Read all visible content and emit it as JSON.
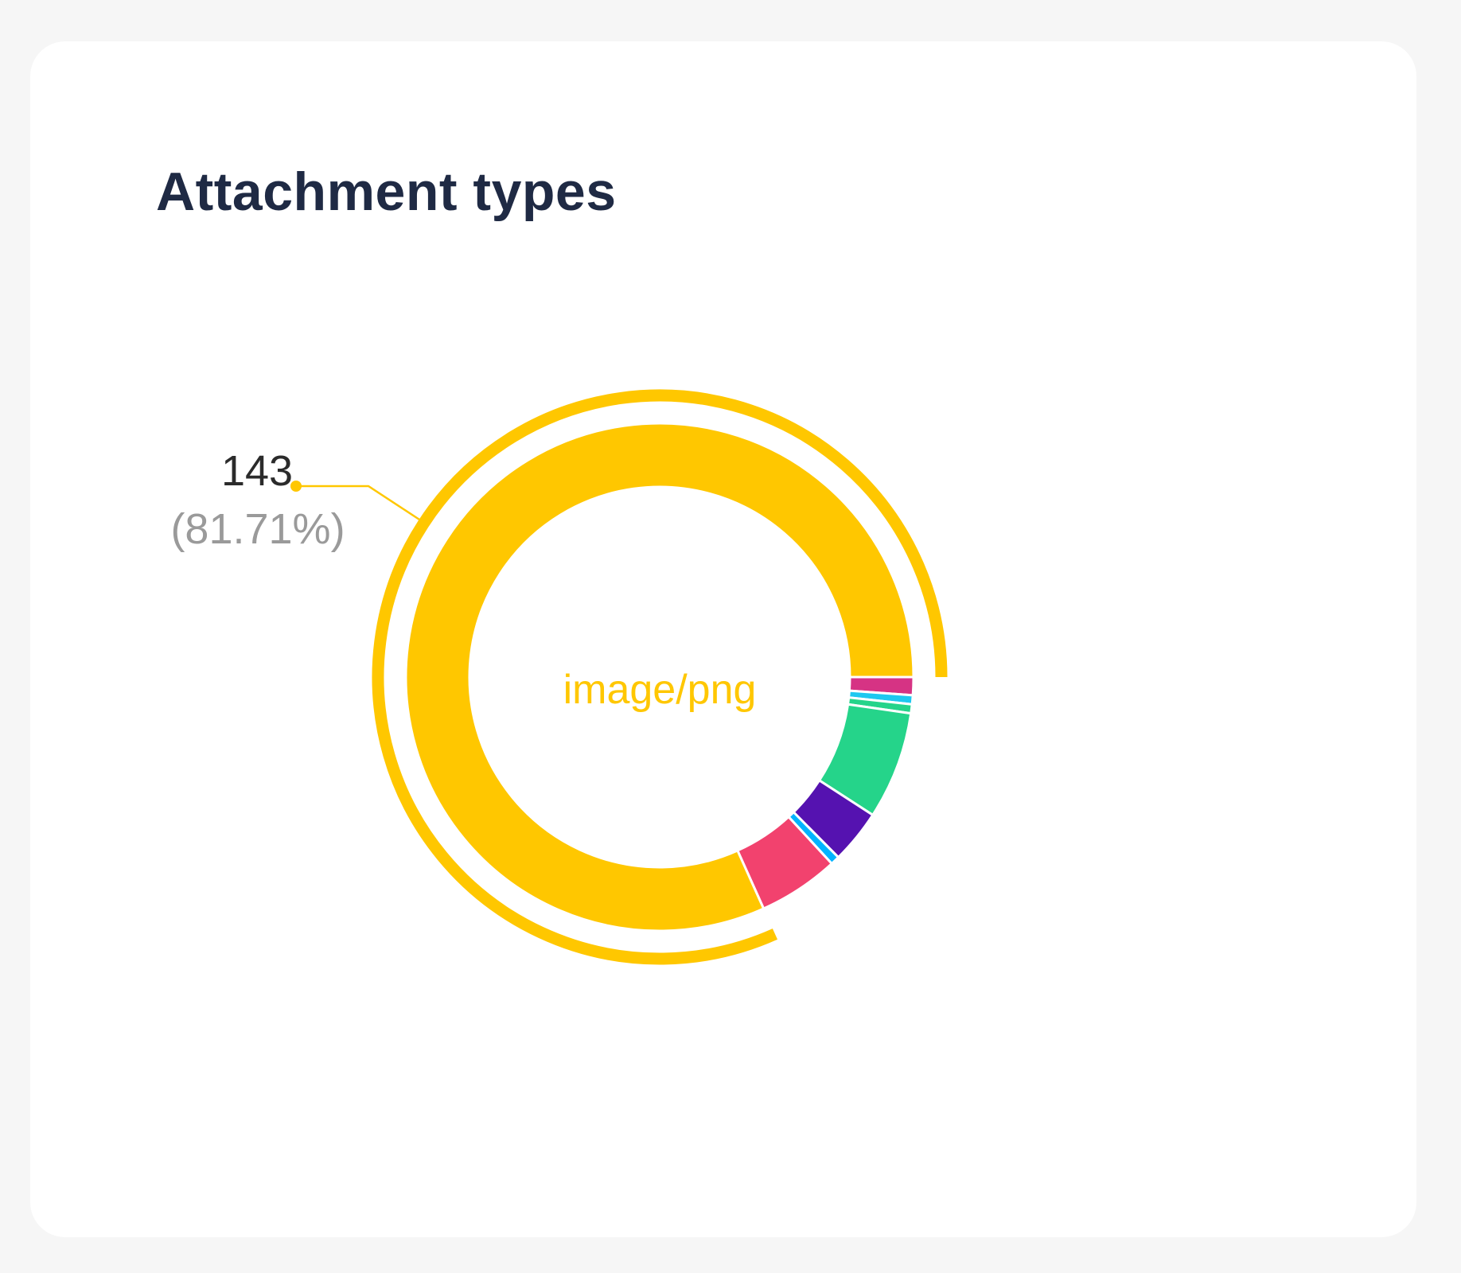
{
  "card": {
    "title": "Attachment types"
  },
  "chart_data": {
    "type": "pie",
    "variant": "donut",
    "title": "Attachment types",
    "values": [
      143,
      2,
      1,
      1,
      12,
      6,
      1,
      9
    ],
    "colors": [
      "#FFC700",
      "#D63384",
      "#1EC8F0",
      "#25D48A",
      "#25D48A",
      "#5512B0",
      "#00B4FF",
      "#F2426E"
    ],
    "highlighted": {
      "index": 0,
      "category": "image/png",
      "value_label": "143",
      "percent_label": "(81.71%)"
    },
    "label_color": "#FFC700",
    "legend": "none"
  }
}
